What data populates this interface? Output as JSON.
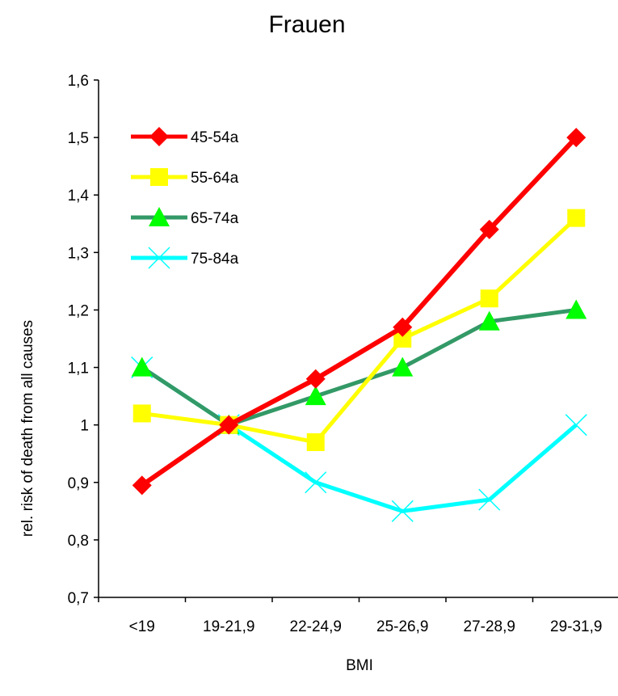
{
  "chart_data": {
    "type": "line",
    "title": "Frauen",
    "xlabel": "BMI",
    "ylabel": "rel. risk of death from all causes",
    "categories": [
      "<19",
      "19-21,9",
      "22-24,9",
      "25-26,9",
      "27-28,9",
      "29-31,9"
    ],
    "ylim": [
      0.7,
      1.6
    ],
    "yticks": [
      0.7,
      0.8,
      0.9,
      1.0,
      1.1,
      1.2,
      1.3,
      1.4,
      1.5,
      1.6
    ],
    "ytick_labels": [
      "0,7",
      "0,8",
      "0,9",
      "1",
      "1,1",
      "1,2",
      "1,3",
      "1,4",
      "1,5",
      "1,6"
    ],
    "grid": false,
    "legend_position": "top-left",
    "series": [
      {
        "name": "45-54a",
        "color": "#ff0000",
        "marker": "diamond",
        "marker_color": "#ff0000",
        "values": [
          0.895,
          1.0,
          1.08,
          1.17,
          1.34,
          1.5
        ]
      },
      {
        "name": "55-64a",
        "color": "#ffff00",
        "marker": "square",
        "marker_color": "#ffff00",
        "values": [
          1.02,
          1.0,
          0.97,
          1.15,
          1.22,
          1.36
        ]
      },
      {
        "name": "65-74a",
        "color": "#339966",
        "marker": "triangle",
        "marker_color": "#00ff00",
        "values": [
          1.1,
          1.0,
          1.05,
          1.1,
          1.18,
          1.2
        ]
      },
      {
        "name": "75-84a",
        "color": "#00ffff",
        "marker": "x",
        "marker_color": "#00ffff",
        "values": [
          1.1,
          1.0,
          0.9,
          0.85,
          0.87,
          1.0
        ]
      }
    ]
  }
}
